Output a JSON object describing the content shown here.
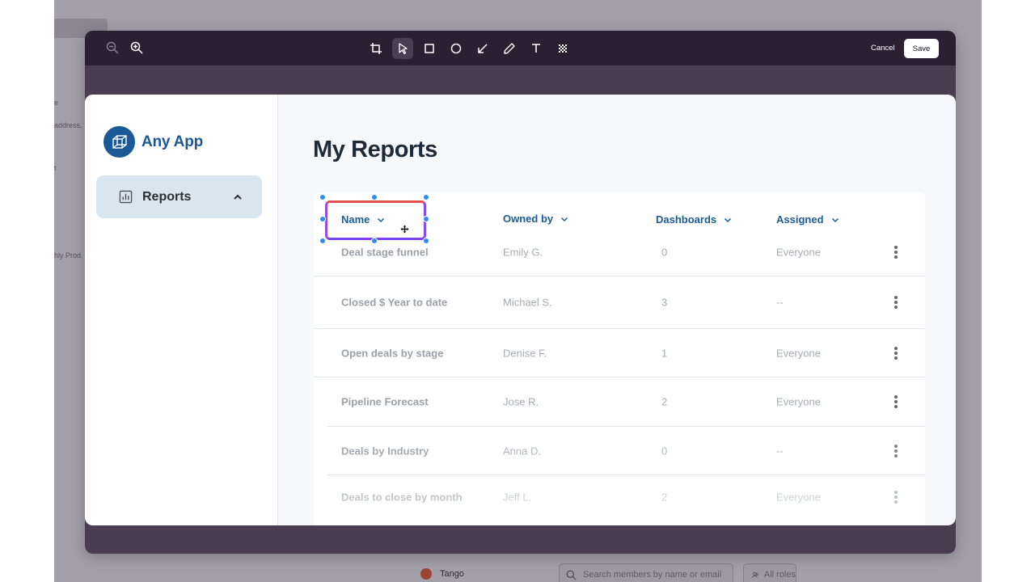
{
  "background": {
    "snippets": [
      "e",
      "address.",
      "t",
      "hly Prod."
    ],
    "bottom_bar": {
      "app_name": "Tango",
      "search_placeholder": "Search members by name or email",
      "roles_label": "All roles"
    }
  },
  "editor": {
    "toolbar": {
      "zoom_tools": [
        {
          "icon": "zoom-out-icon"
        },
        {
          "icon": "zoom-in-icon"
        }
      ],
      "tools": [
        {
          "icon": "crop-icon",
          "active": false
        },
        {
          "icon": "pointer-icon",
          "active": true
        },
        {
          "icon": "rectangle-icon",
          "active": false
        },
        {
          "icon": "circle-icon",
          "active": false
        },
        {
          "icon": "arrow-icon",
          "active": false
        },
        {
          "icon": "pencil-icon",
          "active": false
        },
        {
          "icon": "text-icon",
          "active": false
        },
        {
          "icon": "blur-icon",
          "active": false
        }
      ],
      "cancel_label": "Cancel",
      "save_label": "Save"
    }
  },
  "app": {
    "brand_name": "Any App",
    "nav": [
      {
        "label": "Reports",
        "icon": "chart-icon",
        "expanded": true
      }
    ],
    "page_title": "My Reports",
    "table": {
      "columns": [
        "Name",
        "Owned by",
        "Dashboards",
        "Assigned"
      ],
      "rows": [
        {
          "name": "Deal stage funnel",
          "owner": "Emily G.",
          "dashboards": "0",
          "assigned": "Everyone"
        },
        {
          "name": "Closed $ Year to date",
          "owner": "Michael S.",
          "dashboards": "3",
          "assigned": "--"
        },
        {
          "name": "Open deals by stage",
          "owner": "Denise F.",
          "dashboards": "1",
          "assigned": "Everyone"
        },
        {
          "name": "Pipeline Forecast",
          "owner": "Jose R.",
          "dashboards": "2",
          "assigned": "Everyone"
        },
        {
          "name": "Deals by Industry",
          "owner": "Anna D.",
          "dashboards": "0",
          "assigned": "--"
        },
        {
          "name": "Deals to close by month",
          "owner": "Jeff L.",
          "dashboards": "2",
          "assigned": "Everyone"
        }
      ]
    }
  },
  "colors": {
    "accent": "#1c5c96",
    "toolbar_bg": "#2a1f33",
    "selection_handle": "#2f8af5"
  }
}
